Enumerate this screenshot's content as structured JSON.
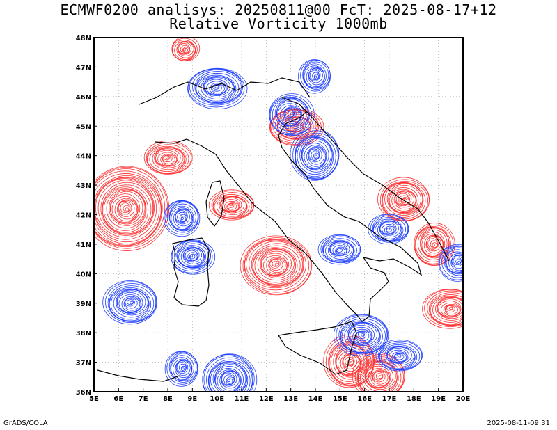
{
  "title_line1": "ECMWF0200 analisys: 20250811@00 FcT: 2025-08-17+12",
  "title_line2": "Relative Vorticity 1000mb",
  "footer_left": "GrADS/COLA",
  "footer_right": "2025-08-11-09:31",
  "colors": {
    "positive_contour": "#ff3030",
    "negative_contour": "#2040ff",
    "coastline": "#000000",
    "grid": "#a0a0a0"
  },
  "map": {
    "lon_range": [
      5,
      20
    ],
    "lat_range": [
      36,
      48
    ],
    "lon_ticks": [
      "5E",
      "6E",
      "7E",
      "8E",
      "9E",
      "10E",
      "11E",
      "12E",
      "13E",
      "14E",
      "15E",
      "16E",
      "17E",
      "18E",
      "19E",
      "20E"
    ],
    "lat_ticks": [
      "36N",
      "37N",
      "38N",
      "39N",
      "40N",
      "41N",
      "42N",
      "43N",
      "44N",
      "45N",
      "46N",
      "47N",
      "48N"
    ],
    "vorticity_features": [
      {
        "sign": "positive",
        "lon": 6.3,
        "lat": 42.2,
        "size": 1.6
      },
      {
        "sign": "positive",
        "lon": 12.4,
        "lat": 40.3,
        "size": 1.2
      },
      {
        "sign": "positive",
        "lon": 8.0,
        "lat": 43.9,
        "size": 0.8
      },
      {
        "sign": "positive",
        "lon": 13.2,
        "lat": 45.0,
        "size": 1.0
      },
      {
        "sign": "positive",
        "lon": 17.6,
        "lat": 42.5,
        "size": 1.1
      },
      {
        "sign": "positive",
        "lon": 18.8,
        "lat": 41.0,
        "size": 0.9
      },
      {
        "sign": "positive",
        "lon": 15.4,
        "lat": 37.0,
        "size": 1.0
      },
      {
        "sign": "positive",
        "lon": 16.6,
        "lat": 36.5,
        "size": 0.9
      },
      {
        "sign": "positive",
        "lon": 19.5,
        "lat": 38.8,
        "size": 0.9
      },
      {
        "sign": "positive",
        "lon": 10.6,
        "lat": 42.3,
        "size": 0.8
      },
      {
        "sign": "negative",
        "lon": 9.0,
        "lat": 40.6,
        "size": 0.9
      },
      {
        "sign": "negative",
        "lon": 8.6,
        "lat": 41.9,
        "size": 0.8
      },
      {
        "sign": "negative",
        "lon": 14.0,
        "lat": 44.0,
        "size": 1.0
      },
      {
        "sign": "negative",
        "lon": 13.0,
        "lat": 45.4,
        "size": 0.8
      },
      {
        "sign": "negative",
        "lon": 15.9,
        "lat": 37.9,
        "size": 0.9
      },
      {
        "sign": "negative",
        "lon": 17.4,
        "lat": 37.2,
        "size": 0.8
      },
      {
        "sign": "negative",
        "lon": 17.0,
        "lat": 41.5,
        "size": 0.8
      },
      {
        "sign": "negative",
        "lon": 10.5,
        "lat": 36.4,
        "size": 1.2
      },
      {
        "sign": "negative",
        "lon": 8.6,
        "lat": 36.8,
        "size": 0.7
      },
      {
        "sign": "negative",
        "lon": 19.8,
        "lat": 40.4,
        "size": 0.7
      },
      {
        "sign": "negative",
        "lon": 6.5,
        "lat": 39.0,
        "size": 0.9
      },
      {
        "sign": "negative",
        "lon": 10.0,
        "lat": 46.3,
        "size": 1.0
      },
      {
        "sign": "negative",
        "lon": 15.0,
        "lat": 40.8,
        "size": 0.8
      },
      {
        "sign": "positive",
        "lon": 8.7,
        "lat": 47.6,
        "size": 0.6
      },
      {
        "sign": "negative",
        "lon": 14.0,
        "lat": 46.7,
        "size": 0.7
      }
    ]
  }
}
